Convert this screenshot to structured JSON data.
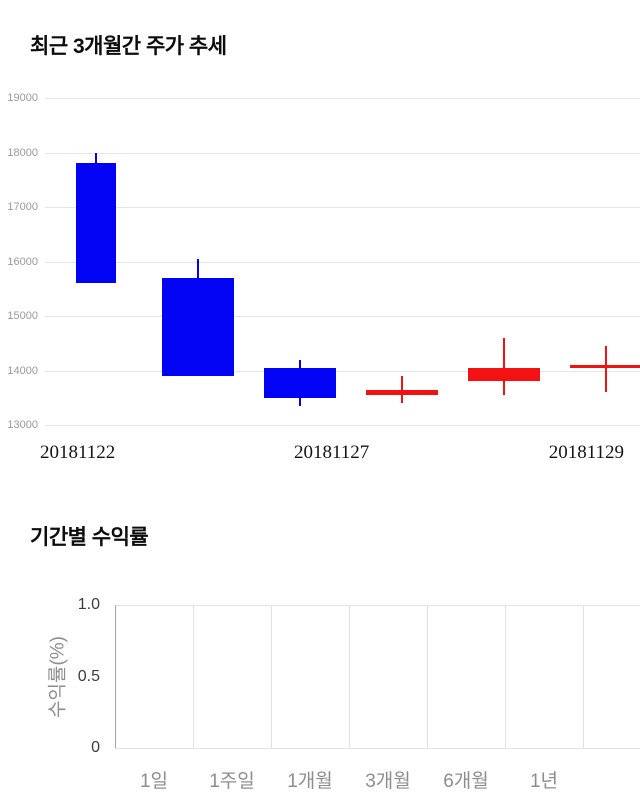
{
  "sections": {
    "price_trend": {
      "title": "최근 3개월간 주가 추세"
    },
    "returns": {
      "title": "기간별 수익률",
      "ylabel": "수익률(%)"
    }
  },
  "colors": {
    "up": "#f41111",
    "down": "#0202f5",
    "grid": "#e5e5e5",
    "axis": "#a3a3a3"
  },
  "chart_data": [
    {
      "type": "candlestick",
      "title": "최근 3개월간 주가 추세",
      "ylim": [
        13000,
        19000
      ],
      "y_ticks": [
        19000,
        18000,
        17000,
        16000,
        15000,
        14000,
        13000
      ],
      "x_tick_labels": [
        "20181122",
        "20181127",
        "20181129"
      ],
      "grid": "horizontal",
      "candles": [
        {
          "open": 17800,
          "close": 15600,
          "high": 18000,
          "low": 15600,
          "direction": "down"
        },
        {
          "open": 15700,
          "close": 13900,
          "high": 16050,
          "low": 13900,
          "direction": "down"
        },
        {
          "open": 14050,
          "close": 13500,
          "high": 14200,
          "low": 13350,
          "direction": "down"
        },
        {
          "open": 13550,
          "close": 13650,
          "high": 13900,
          "low": 13400,
          "direction": "up"
        },
        {
          "open": 13800,
          "close": 14050,
          "high": 14600,
          "low": 13550,
          "direction": "up"
        },
        {
          "open": 14050,
          "close": 14100,
          "high": 14450,
          "low": 13600,
          "direction": "up"
        }
      ]
    },
    {
      "type": "bar",
      "title": "기간별 수익률",
      "ylabel": "수익률(%)",
      "categories": [
        "1일",
        "1주일",
        "1개월",
        "3개월",
        "6개월",
        "1년"
      ],
      "values": [
        0,
        0,
        0,
        0,
        0,
        0
      ],
      "y_ticks": [
        0,
        0.5,
        1.0
      ],
      "y_tick_labels": [
        "0",
        "0.5",
        "1.0"
      ],
      "ylim": [
        0,
        1.0
      ],
      "grid": "vertical",
      "legend": "none"
    }
  ]
}
